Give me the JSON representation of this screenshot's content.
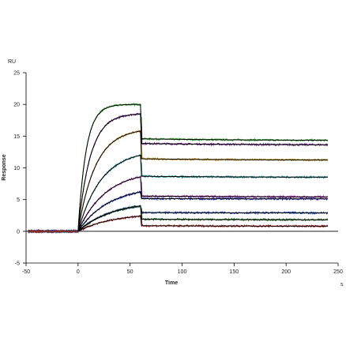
{
  "chart_data": {
    "type": "line",
    "title": "",
    "xlabel": "Time",
    "ylabel": "Response",
    "x_unit": "s",
    "y_unit": "RU",
    "xlim": [
      -50,
      250
    ],
    "ylim": [
      -5,
      25
    ],
    "x_ticks": [
      -50,
      0,
      50,
      100,
      150,
      200,
      250
    ],
    "y_ticks": [
      -5,
      0,
      5,
      10,
      15,
      20,
      25
    ],
    "grid": false,
    "legend": "none",
    "association_end": 60,
    "dissociation_end": 240,
    "baseline_start": -48,
    "series": [
      {
        "color": "#2eaa2e",
        "association_max": 20.0,
        "k_on": 0.13,
        "dissociation_end_value": 14.3,
        "k_off": 0.05
      },
      {
        "color": "#6a1f8a",
        "association_max": 18.5,
        "k_on": 0.085,
        "dissociation_end_value": 13.6,
        "k_off": 0.05
      },
      {
        "color": "#c58a10",
        "association_max": 15.8,
        "k_on": 0.06,
        "dissociation_end_value": 11.2,
        "k_off": 0.05
      },
      {
        "color": "#138a8a",
        "association_max": 12.0,
        "k_on": 0.045,
        "dissociation_end_value": 8.5,
        "k_off": 0.05
      },
      {
        "color": "#a52aa5",
        "association_max": 8.6,
        "k_on": 0.038,
        "dissociation_end_value": 5.4,
        "k_off": 0.05
      },
      {
        "color": "#1a2ec8",
        "association_max": 6.2,
        "k_on": 0.034,
        "dissociation_end_value": 5.1,
        "k_off": 0.05
      },
      {
        "color": "#1f3fbf",
        "association_max": 4.0,
        "k_on": 0.032,
        "dissociation_end_value": 2.9,
        "k_off": 0.05
      },
      {
        "color": "#1a6a1a",
        "association_max": 4.0,
        "k_on": 0.03,
        "dissociation_end_value": 1.8,
        "k_off": 0.05
      },
      {
        "color": "#b01818",
        "association_max": 2.4,
        "k_on": 0.03,
        "dissociation_end_value": 0.8,
        "k_off": 0.05
      }
    ],
    "fit_color": "#000000"
  }
}
